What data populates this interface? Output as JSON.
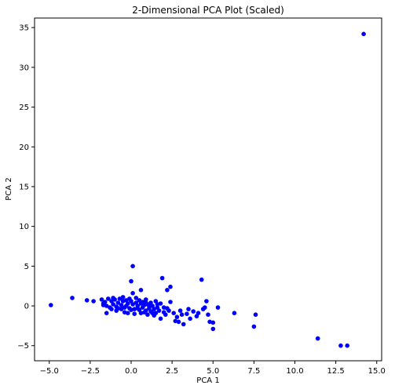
{
  "chart_data": {
    "type": "scatter",
    "title": "2-Dimensional PCA Plot (Scaled)",
    "xlabel": "PCA 1",
    "ylabel": "PCA 2",
    "xlim": [
      -5.9,
      15.3
    ],
    "ylim": [
      -6.9,
      36.2
    ],
    "xticks": [
      -5.0,
      -2.5,
      0.0,
      2.5,
      5.0,
      7.5,
      10.0,
      12.5,
      15.0
    ],
    "xtick_labels": [
      "−5.0",
      "−2.5",
      "0.0",
      "2.5",
      "5.0",
      "7.5",
      "10.0",
      "12.5",
      "15.0"
    ],
    "yticks": [
      -5,
      0,
      5,
      10,
      15,
      20,
      25,
      30,
      35
    ],
    "ytick_labels": [
      "−5",
      "0",
      "5",
      "10",
      "15",
      "20",
      "25",
      "30",
      "35"
    ],
    "grid": false,
    "marker_color": "#0000ff",
    "series": [
      {
        "points": [
          [
            14.2,
            34.2
          ],
          [
            0.1,
            5.0
          ],
          [
            0.0,
            3.1
          ],
          [
            1.9,
            3.5
          ],
          [
            4.3,
            3.3
          ],
          [
            2.4,
            2.4
          ],
          [
            2.2,
            2.0
          ],
          [
            0.1,
            1.6
          ],
          [
            0.6,
            2.0
          ],
          [
            -3.6,
            1.0
          ],
          [
            -4.9,
            0.1
          ],
          [
            -2.7,
            0.7
          ],
          [
            -2.3,
            0.6
          ],
          [
            -1.8,
            0.8
          ],
          [
            -1.7,
            0.3
          ],
          [
            -1.6,
            0.5
          ],
          [
            -1.5,
            0.0
          ],
          [
            -1.4,
            0.9
          ],
          [
            -1.3,
            -0.2
          ],
          [
            -1.2,
            0.6
          ],
          [
            -1.1,
            0.2
          ],
          [
            -1.0,
            0.8
          ],
          [
            -0.9,
            -0.1
          ],
          [
            -0.8,
            0.4
          ],
          [
            -0.7,
            0.9
          ],
          [
            -0.6,
            0.1
          ],
          [
            -0.5,
            0.6
          ],
          [
            -0.4,
            -0.2
          ],
          [
            -0.3,
            0.7
          ],
          [
            -0.2,
            0.3
          ],
          [
            -0.1,
            -0.3
          ],
          [
            0.0,
            0.6
          ],
          [
            0.1,
            0.2
          ],
          [
            0.2,
            -0.4
          ],
          [
            0.3,
            0.4
          ],
          [
            0.4,
            0.0
          ],
          [
            0.5,
            -0.5
          ],
          [
            0.6,
            0.3
          ],
          [
            0.7,
            -0.2
          ],
          [
            0.8,
            0.1
          ],
          [
            0.9,
            -0.6
          ],
          [
            1.0,
            0.2
          ],
          [
            1.1,
            -0.3
          ],
          [
            1.2,
            -0.7
          ],
          [
            1.3,
            0.0
          ],
          [
            1.4,
            -0.4
          ],
          [
            1.5,
            -0.9
          ],
          [
            1.6,
            -0.2
          ],
          [
            1.7,
            -0.6
          ],
          [
            1.8,
            0.3
          ],
          [
            2.0,
            -0.8
          ],
          [
            2.1,
            -1.1
          ],
          [
            2.2,
            -0.3
          ],
          [
            2.3,
            -0.6
          ],
          [
            2.4,
            0.5
          ],
          [
            -1.5,
            -0.9
          ],
          [
            -0.9,
            -0.6
          ],
          [
            -0.4,
            -0.8
          ],
          [
            0.2,
            -1.0
          ],
          [
            0.6,
            -0.9
          ],
          [
            1.0,
            -1.1
          ],
          [
            1.4,
            -1.2
          ],
          [
            1.8,
            -1.6
          ],
          [
            -1.1,
            1.0
          ],
          [
            -0.5,
            1.1
          ],
          [
            0.3,
            1.0
          ],
          [
            0.9,
            0.8
          ],
          [
            1.5,
            0.6
          ],
          [
            2.6,
            -0.9
          ],
          [
            2.8,
            -1.4
          ],
          [
            3.0,
            -0.6
          ],
          [
            3.1,
            -1.1
          ],
          [
            3.2,
            -2.3
          ],
          [
            3.4,
            -1.0
          ],
          [
            3.5,
            -0.4
          ],
          [
            3.6,
            -1.6
          ],
          [
            3.8,
            -0.7
          ],
          [
            4.0,
            -1.3
          ],
          [
            4.1,
            -0.9
          ],
          [
            4.4,
            -0.4
          ],
          [
            4.5,
            -0.2
          ],
          [
            4.6,
            0.6
          ],
          [
            4.7,
            -1.1
          ],
          [
            4.8,
            -2.0
          ],
          [
            5.0,
            -2.1
          ],
          [
            5.0,
            -2.9
          ],
          [
            5.3,
            -0.2
          ],
          [
            2.7,
            -1.9
          ],
          [
            2.9,
            -2.0
          ],
          [
            6.3,
            -0.9
          ],
          [
            7.5,
            -2.6
          ],
          [
            7.6,
            -1.1
          ],
          [
            11.4,
            -4.1
          ],
          [
            12.8,
            -5.0
          ],
          [
            13.2,
            -5.0
          ],
          [
            -0.2,
            -0.9
          ],
          [
            0.4,
            -0.3
          ],
          [
            -0.6,
            -0.4
          ],
          [
            1.2,
            0.4
          ],
          [
            -1.2,
            -0.4
          ],
          [
            0.8,
            -0.8
          ],
          [
            1.6,
            0.2
          ],
          [
            -0.3,
            0.0
          ],
          [
            0.5,
            0.7
          ],
          [
            1.3,
            -0.9
          ],
          [
            -0.8,
            -0.3
          ],
          [
            0.0,
            -0.5
          ],
          [
            2.0,
            -0.2
          ],
          [
            0.7,
            0.5
          ],
          [
            -1.7,
            0.1
          ],
          [
            1.1,
            0.0
          ],
          [
            -0.1,
            0.9
          ],
          [
            0.9,
            0.4
          ]
        ]
      }
    ]
  }
}
